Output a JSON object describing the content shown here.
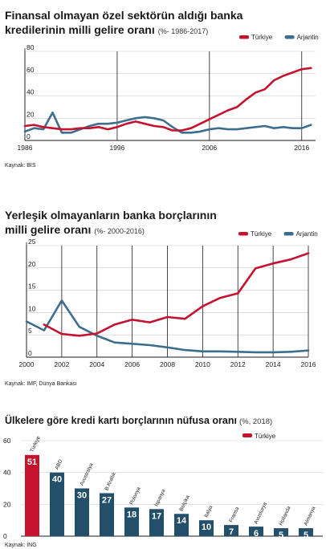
{
  "colors": {
    "turkiye": "#c4122f",
    "arjantin": "#3d6e8e",
    "bar_other": "#244f6b",
    "axis": "#1a1a1a"
  },
  "chart_data": [
    {
      "type": "line",
      "title_line1": "Finansal olmayan özel sektörün aldığı banka",
      "title_line2": "kredilerinin milli gelire oranı",
      "subtitle": "(%- 1986-2017)",
      "source": "Kaynak: BIS",
      "legend_position": "top-right",
      "xlim": [
        1986,
        2017.5
      ],
      "ylim": [
        0,
        80
      ],
      "yticks": [
        "0",
        "20",
        "40",
        "60",
        "80"
      ],
      "xticks": [
        "1986",
        "1996",
        "2006",
        "2016"
      ],
      "series": [
        {
          "name": "Türkiye",
          "color": "#c4122f",
          "x": [
            1986,
            1987,
            1988,
            1989,
            1990,
            1991,
            1992,
            1993,
            1994,
            1995,
            1996,
            1997,
            1998,
            1999,
            2000,
            2001,
            2002,
            2003,
            2004,
            2005,
            2006,
            2007,
            2008,
            2009,
            2010,
            2011,
            2012,
            2013,
            2014,
            2015,
            2016,
            2017
          ],
          "y": [
            13,
            14,
            12,
            11,
            10,
            10,
            11,
            11,
            12,
            10,
            12,
            15,
            17,
            15,
            13,
            12,
            9,
            9,
            11,
            15,
            19,
            23,
            27,
            30,
            37,
            43,
            46,
            54,
            58,
            61,
            64,
            65
          ]
        },
        {
          "name": "Arjantin",
          "color": "#3d6e8e",
          "x": [
            1986,
            1987,
            1988,
            1989,
            1990,
            1991,
            1992,
            1993,
            1994,
            1995,
            1996,
            1997,
            1998,
            1999,
            2000,
            2001,
            2002,
            2003,
            2004,
            2005,
            2006,
            2007,
            2008,
            2009,
            2010,
            2011,
            2012,
            2013,
            2014,
            2015,
            2016,
            2017
          ],
          "y": [
            8,
            11,
            10,
            25,
            7,
            7,
            10,
            13,
            15,
            15,
            16,
            18,
            20,
            21,
            20,
            18,
            12,
            7,
            7,
            8,
            10,
            11,
            10,
            10,
            11,
            12,
            13,
            11,
            12,
            11,
            11,
            14
          ]
        }
      ]
    },
    {
      "type": "line",
      "title_line1": "Yerleşik olmayanların banka borçlarının",
      "title_line2": "milli gelire oranı",
      "subtitle": "(%- 2000-2016)",
      "source": "Kaynak: IMF, Dünya Bankası",
      "legend_position": "top-right",
      "xlim": [
        2000,
        2016
      ],
      "ylim": [
        0,
        25
      ],
      "yticks": [
        "0",
        "5",
        "10",
        "15",
        "20",
        "25"
      ],
      "xticks": [
        "2000",
        "2002",
        "2004",
        "2006",
        "2008",
        "2010",
        "2012",
        "2014",
        "2016"
      ],
      "series": [
        {
          "name": "Türkiye",
          "color": "#c4122f",
          "x": [
            2001,
            2002,
            2003,
            2004,
            2005,
            2006,
            2007,
            2008,
            2009,
            2010,
            2011,
            2012,
            2013,
            2014,
            2015,
            2016
          ],
          "y": [
            7.3,
            5.2,
            4.8,
            5.3,
            7.3,
            8.4,
            7.8,
            9.0,
            8.6,
            11.4,
            13.3,
            14.3,
            19.9,
            21.0,
            21.9,
            23.3
          ]
        },
        {
          "name": "Arjantin",
          "color": "#3d6e8e",
          "x": [
            2000,
            2001,
            2002,
            2003,
            2004,
            2005,
            2006,
            2007,
            2008,
            2009,
            2010,
            2011,
            2012,
            2013,
            2014,
            2015,
            2016
          ],
          "y": [
            8.0,
            6.0,
            12.7,
            6.8,
            4.8,
            3.3,
            3.0,
            2.7,
            2.2,
            1.6,
            1.3,
            1.3,
            1.2,
            1.1,
            1.1,
            1.2,
            1.5
          ]
        }
      ]
    },
    {
      "type": "bar",
      "title": "Ülkelere göre kredi kartı borçlarının nüfusa oranı",
      "subtitle": "(%, 2018)",
      "source": "Kaynak: İNG",
      "legend": "Türkiye",
      "legend_position": "top-right",
      "ylim": [
        0,
        60
      ],
      "yticks": [
        "0",
        "20",
        "40",
        "60"
      ],
      "categories": [
        "Türkiye",
        "ABD",
        "Avustralya",
        "B.Krallık",
        "Polonya",
        "İspanya",
        "Belçika",
        "İtalya",
        "Fransa",
        "Avusturya",
        "Hollanda",
        "Almanya"
      ],
      "values": [
        51,
        40,
        30,
        27,
        18,
        17,
        14,
        10,
        7,
        6,
        5,
        5
      ],
      "highlight_index": 0
    }
  ]
}
